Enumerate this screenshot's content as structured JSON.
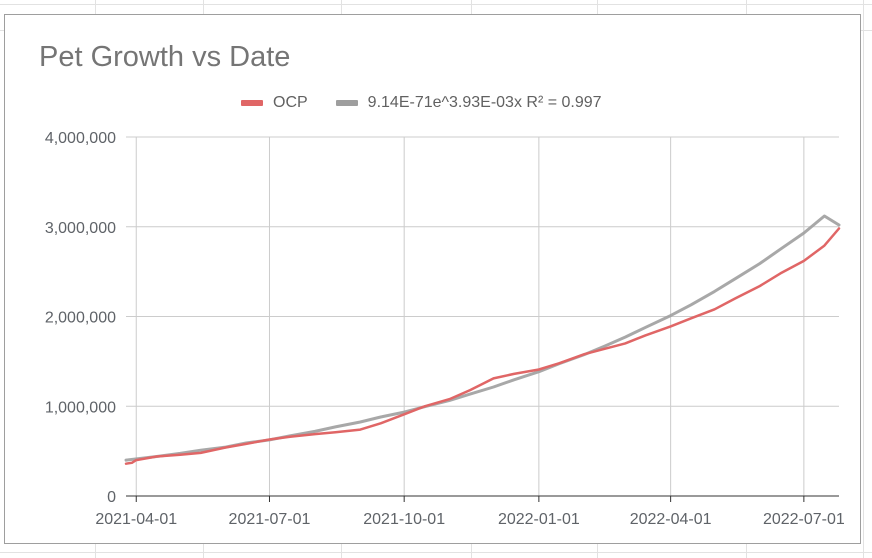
{
  "chart_data": {
    "type": "line",
    "title": "Pet Growth vs Date",
    "xlabel": "",
    "ylabel": "",
    "x_type": "date",
    "xlim": [
      "2021-03-25",
      "2022-07-25"
    ],
    "ylim": [
      0,
      4000000
    ],
    "x_ticks": [
      "2021-04-01",
      "2021-07-01",
      "2021-10-01",
      "2022-01-01",
      "2022-04-01",
      "2022-07-01"
    ],
    "y_ticks": [
      0,
      1000000,
      2000000,
      3000000,
      4000000
    ],
    "y_tick_labels": [
      "0",
      "1,000,000",
      "2,000,000",
      "3,000,000",
      "4,000,000"
    ],
    "grid": true,
    "legend_position": "top",
    "series": [
      {
        "name": "OCP",
        "color": "#e06666",
        "x": [
          "2021-03-25",
          "2021-03-29",
          "2021-04-01",
          "2021-04-15",
          "2021-05-01",
          "2021-05-15",
          "2021-06-01",
          "2021-06-15",
          "2021-07-01",
          "2021-07-15",
          "2021-08-01",
          "2021-08-15",
          "2021-09-01",
          "2021-09-15",
          "2021-10-01",
          "2021-10-15",
          "2021-11-01",
          "2021-11-15",
          "2021-12-01",
          "2021-12-15",
          "2022-01-01",
          "2022-01-15",
          "2022-02-01",
          "2022-02-15",
          "2022-03-01",
          "2022-03-15",
          "2022-04-01",
          "2022-04-15",
          "2022-05-01",
          "2022-05-15",
          "2022-06-01",
          "2022-06-15",
          "2022-07-01",
          "2022-07-15",
          "2022-07-25"
        ],
        "values": [
          360000,
          370000,
          400000,
          440000,
          460000,
          480000,
          540000,
          580000,
          630000,
          660000,
          690000,
          710000,
          740000,
          810000,
          910000,
          1000000,
          1080000,
          1180000,
          1310000,
          1360000,
          1410000,
          1480000,
          1580000,
          1640000,
          1700000,
          1790000,
          1890000,
          1980000,
          2080000,
          2200000,
          2340000,
          2480000,
          2620000,
          2790000,
          2980000
        ]
      },
      {
        "name": "9.14E-71e^3.93E-03x R² = 0.997",
        "color": "#9e9e9e",
        "trendline": {
          "type": "exponential",
          "a": 9.14e-71,
          "b": 0.00393
        },
        "x": [
          "2021-03-25",
          "2021-04-15",
          "2021-05-01",
          "2021-05-15",
          "2021-06-01",
          "2021-06-15",
          "2021-07-01",
          "2021-07-15",
          "2021-08-01",
          "2021-08-15",
          "2021-09-01",
          "2021-09-15",
          "2021-10-01",
          "2021-10-15",
          "2021-11-01",
          "2021-11-15",
          "2021-12-01",
          "2021-12-15",
          "2022-01-01",
          "2022-01-15",
          "2022-02-01",
          "2022-02-15",
          "2022-03-01",
          "2022-03-15",
          "2022-04-01",
          "2022-04-15",
          "2022-05-01",
          "2022-05-15",
          "2022-06-01",
          "2022-06-15",
          "2022-07-01",
          "2022-07-15",
          "2022-07-25"
        ],
        "values": [
          400000,
          440000,
          475000,
          510000,
          545000,
          590000,
          625000,
          670000,
          720000,
          770000,
          825000,
          880000,
          935000,
          995000,
          1065000,
          1135000,
          1215000,
          1295000,
          1385000,
          1475000,
          1575000,
          1670000,
          1770000,
          1880000,
          2010000,
          2130000,
          2280000,
          2420000,
          2590000,
          2750000,
          2930000,
          3120000,
          3020000
        ]
      }
    ]
  }
}
